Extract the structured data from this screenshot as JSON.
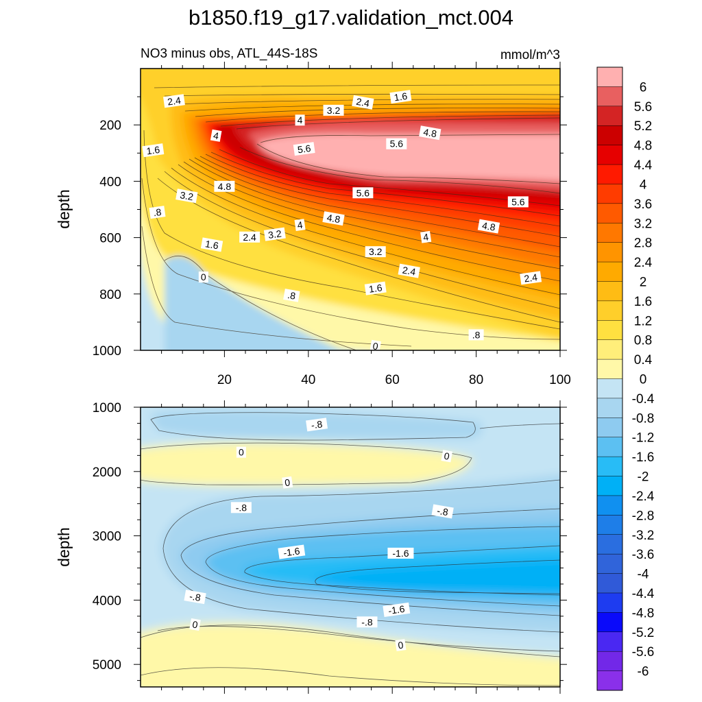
{
  "chart_data": {
    "type": "heatmap",
    "title": "b1850.f19_g17.validation_mct.004",
    "subtitle_left": "NO3 minus obs, ATL_44S-18S",
    "units": "mmol/m^3",
    "upper_panel": {
      "ylabel": "depth",
      "xlim": [
        0,
        100
      ],
      "ylim": [
        0,
        1000
      ],
      "x_ticks": [
        20,
        40,
        60,
        80,
        100
      ],
      "x_tick_labels": [
        "20",
        "40",
        "60",
        "80",
        "100"
      ],
      "y_ticks": [
        200,
        400,
        600,
        800,
        1000
      ],
      "y_tick_labels": [
        "200",
        "400",
        "600",
        "800",
        "1000"
      ],
      "contour_labels": [
        {
          "text": "2.4",
          "x": 8,
          "y": 115
        },
        {
          "text": "3.2",
          "x": 46,
          "y": 148
        },
        {
          "text": "2.4",
          "x": 53,
          "y": 120
        },
        {
          "text": "1.6",
          "x": 62,
          "y": 100
        },
        {
          "text": "4",
          "x": 38,
          "y": 183
        },
        {
          "text": "4",
          "x": 18,
          "y": 238
        },
        {
          "text": "5.6",
          "x": 39,
          "y": 285
        },
        {
          "text": "5.6",
          "x": 61,
          "y": 267
        },
        {
          "text": "4.8",
          "x": 69,
          "y": 228
        },
        {
          "text": "1.6",
          "x": 3,
          "y": 290
        },
        {
          "text": "4.8",
          "x": 20,
          "y": 418
        },
        {
          "text": "3.2",
          "x": 11,
          "y": 452
        },
        {
          "text": ".8",
          "x": 4,
          "y": 510
        },
        {
          "text": "5.6",
          "x": 53,
          "y": 441
        },
        {
          "text": "4.8",
          "x": 46,
          "y": 532
        },
        {
          "text": "4",
          "x": 38,
          "y": 555
        },
        {
          "text": "5.6",
          "x": 90,
          "y": 473
        },
        {
          "text": "4.8",
          "x": 83,
          "y": 560
        },
        {
          "text": "3.2",
          "x": 32,
          "y": 588
        },
        {
          "text": "2.4",
          "x": 26,
          "y": 598
        },
        {
          "text": "1.6",
          "x": 17,
          "y": 625
        },
        {
          "text": "4",
          "x": 68,
          "y": 598
        },
        {
          "text": "3.2",
          "x": 56,
          "y": 650
        },
        {
          "text": "2.4",
          "x": 64,
          "y": 718
        },
        {
          "text": "1.6",
          "x": 56,
          "y": 780
        },
        {
          "text": "0",
          "x": 15,
          "y": 740
        },
        {
          "text": ".8",
          "x": 36,
          "y": 805
        },
        {
          "text": "2.4",
          "x": 93,
          "y": 743
        },
        {
          "text": ".8",
          "x": 80,
          "y": 945
        },
        {
          "text": "0",
          "x": 56,
          "y": 985
        }
      ]
    },
    "lower_panel": {
      "ylabel": "depth",
      "xlim": [
        0,
        100
      ],
      "ylim": [
        1000,
        5350
      ],
      "y_ticks": [
        1000,
        2000,
        3000,
        4000,
        5000
      ],
      "y_tick_labels": [
        "1000",
        "2000",
        "3000",
        "4000",
        "5000"
      ],
      "contour_labels": [
        {
          "text": "-.8",
          "x": 42,
          "y": 1270
        },
        {
          "text": "0",
          "x": 24,
          "y": 1700
        },
        {
          "text": "0",
          "x": 73,
          "y": 1760
        },
        {
          "text": "0",
          "x": 35,
          "y": 2170
        },
        {
          "text": "-.8",
          "x": 24,
          "y": 2560
        },
        {
          "text": "-.8",
          "x": 72,
          "y": 2620
        },
        {
          "text": "-1.6",
          "x": 36,
          "y": 3250
        },
        {
          "text": "-1.6",
          "x": 62,
          "y": 3270
        },
        {
          "text": "-.8",
          "x": 13,
          "y": 3950
        },
        {
          "text": "-1.6",
          "x": 61,
          "y": 4150
        },
        {
          "text": "-.8",
          "x": 54,
          "y": 4340
        },
        {
          "text": "0",
          "x": 13,
          "y": 4380
        },
        {
          "text": "0",
          "x": 62,
          "y": 4700
        }
      ]
    },
    "colorbar": {
      "levels": [
        "6",
        "5.6",
        "5.2",
        "4.8",
        "4.4",
        "4",
        "3.6",
        "3.2",
        "2.8",
        "2.4",
        "2",
        "1.6",
        "1.2",
        "0.8",
        "0.4",
        "0",
        "-0.4",
        "-0.8",
        "-1.2",
        "-1.6",
        "-2",
        "-2.4",
        "-2.8",
        "-3.2",
        "-3.6",
        "-4",
        "-4.4",
        "-4.8",
        "-5.2",
        "-5.6",
        "-6"
      ],
      "colors": [
        "#ffb0b0",
        "#e86060",
        "#d42424",
        "#cc0000",
        "#e60000",
        "#ff1a00",
        "#ff3c00",
        "#ff5a00",
        "#ff7800",
        "#ff9400",
        "#ffaa00",
        "#ffbc14",
        "#ffcf2a",
        "#ffe040",
        "#ffee7a",
        "#fff8a8",
        "#c4e4f4",
        "#a8d6f0",
        "#8ecbf0",
        "#5cc0f2",
        "#28bcf6",
        "#00b0f6",
        "#1090f0",
        "#1e7ee8",
        "#2a6ee0",
        "#3064da",
        "#305ad8",
        "#1e3cf0",
        "#0a0afa",
        "#4a28f2",
        "#7228e8",
        "#8a30ea"
      ]
    },
    "colors": {
      "deep_blue_region": "#a8d6f0",
      "light_blue_region": "#c4e4f4",
      "zero_yellow": "#fff8a8"
    }
  }
}
